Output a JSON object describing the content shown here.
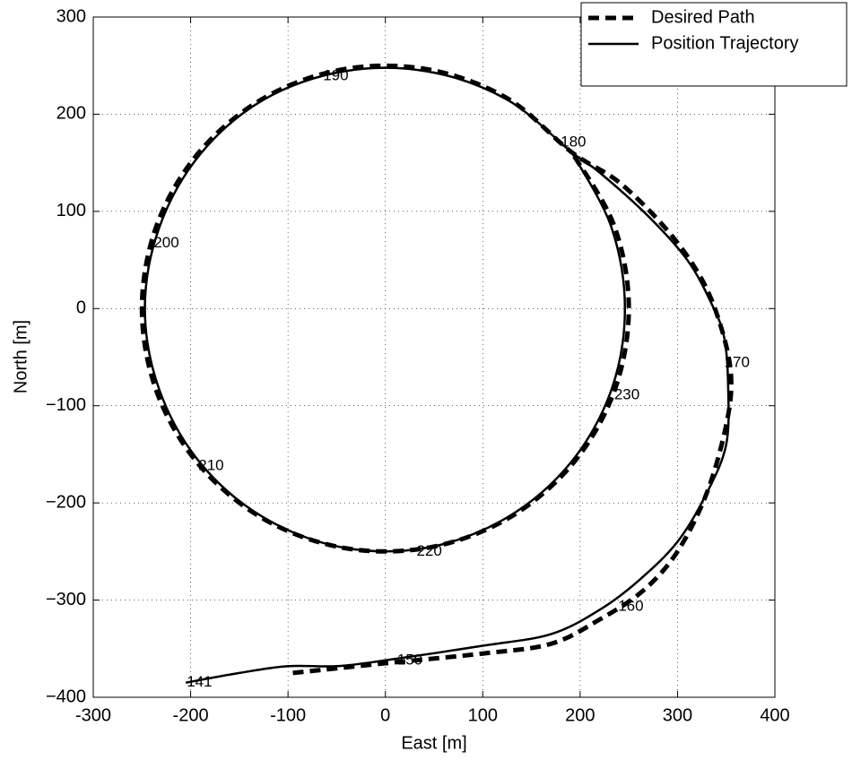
{
  "chart_data": {
    "type": "line",
    "xlabel": "East [m]",
    "ylabel": "North [m]",
    "xlim": [
      -300,
      400
    ],
    "ylim": [
      -400,
      300
    ],
    "xticks": [
      -300,
      -200,
      -100,
      0,
      100,
      200,
      300,
      400
    ],
    "yticks": [
      -400,
      -300,
      -200,
      -100,
      0,
      100,
      200,
      300
    ],
    "grid": true,
    "legend": "upper right",
    "series": [
      {
        "name": "Desired Path",
        "color": "#000000",
        "style": "dashed",
        "x": [
          -95,
          0,
          100,
          170,
          220,
          265,
          300,
          330,
          350,
          355,
          345,
          325,
          290,
          240,
          191.5,
          125,
          43.4,
          -43.4,
          -125,
          -191.5,
          -234.9,
          -250,
          -234.9,
          -191.5,
          -125,
          -43.4,
          43.4,
          125,
          191.5,
          234.9,
          250,
          234.9,
          191.5
        ],
        "values": [
          -375,
          -365,
          -355,
          -345,
          -320,
          -290,
          -250,
          -190,
          -120,
          -70,
          -20,
          30,
          80,
          130,
          160.7,
          216.5,
          246.2,
          246.2,
          216.5,
          160.7,
          85.5,
          0,
          -85.5,
          -160.7,
          -216.5,
          -246.2,
          -246.2,
          -216.5,
          -160.7,
          -85.5,
          0,
          85.5,
          160.7
        ]
      },
      {
        "name": "Position Trajectory",
        "color": "#000000",
        "style": "solid",
        "x": [
          -205,
          -150,
          -100,
          -50,
          0,
          100,
          170,
          220,
          260,
          300,
          330,
          350,
          352,
          348,
          335,
          310,
          270,
          220,
          191.5,
          125,
          43.4,
          -43.4,
          -125,
          -190,
          -232,
          -247,
          -232,
          -190,
          -125,
          -43.4,
          43.4,
          125,
          190,
          232,
          246,
          232,
          191.5
        ],
        "values": [
          -385,
          -375,
          -368,
          -368,
          -362,
          -347,
          -335,
          -310,
          -280,
          -240,
          -190,
          -140,
          -80,
          -30,
          5,
          50,
          95,
          140,
          160.7,
          215,
          244,
          244,
          215,
          159,
          84,
          0,
          -84,
          -159,
          -215,
          -246,
          -246,
          -215,
          -159,
          -84,
          0,
          84,
          160.7
        ]
      }
    ],
    "annotations": [
      {
        "text": "141",
        "x": -204,
        "y": -385
      },
      {
        "text": "150",
        "x": 12,
        "y": -362
      },
      {
        "text": "160",
        "x": 239,
        "y": -307
      },
      {
        "text": "170",
        "x": 348,
        "y": -56
      },
      {
        "text": "180",
        "x": 180,
        "y": 171
      },
      {
        "text": "190",
        "x": -64,
        "y": 239
      },
      {
        "text": "200",
        "x": -238,
        "y": 67
      },
      {
        "text": "210",
        "x": -192,
        "y": -162
      },
      {
        "text": "220",
        "x": 32,
        "y": -250
      },
      {
        "text": "230",
        "x": 235,
        "y": -89
      }
    ]
  }
}
